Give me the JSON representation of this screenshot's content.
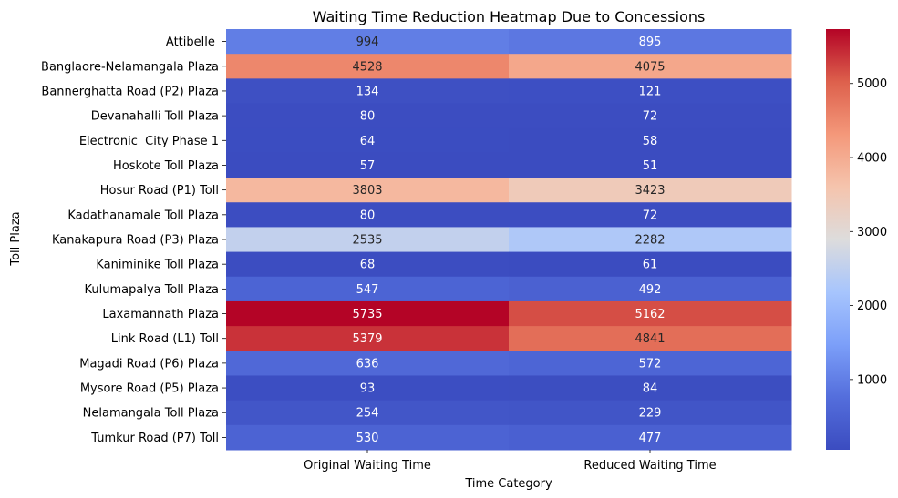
{
  "chart_data": {
    "type": "heatmap",
    "title": "Waiting Time Reduction Heatmap Due to Concessions",
    "xlabel": "Time Category",
    "ylabel": "Toll Plaza",
    "columns": [
      "Original Waiting Time",
      "Reduced Waiting Time"
    ],
    "rows": [
      "Attibelle ",
      "Banglaore-Nelamangala Plaza",
      "Bannerghatta Road (P2) Plaza",
      "Devanahalli Toll Plaza",
      "Electronic  City Phase 1",
      "Hoskote Toll Plaza",
      "Hosur Road (P1) Toll",
      "Kadathanamale Toll Plaza",
      "Kanakapura Road (P3) Plaza",
      "Kaniminike Toll Plaza",
      "Kulumapalya Toll Plaza",
      "Laxamannath Plaza",
      "Link Road (L1) Toll",
      "Magadi Road (P6) Plaza",
      "Mysore Road (P5) Plaza",
      "Nelamangala Toll Plaza",
      "Tumkur Road (P7) Toll"
    ],
    "values": [
      [
        994,
        895
      ],
      [
        4528,
        4075
      ],
      [
        134,
        121
      ],
      [
        80,
        72
      ],
      [
        64,
        58
      ],
      [
        57,
        51
      ],
      [
        3803,
        3423
      ],
      [
        80,
        72
      ],
      [
        2535,
        2282
      ],
      [
        68,
        61
      ],
      [
        547,
        492
      ],
      [
        5735,
        5162
      ],
      [
        5379,
        4841
      ],
      [
        636,
        572
      ],
      [
        93,
        84
      ],
      [
        254,
        229
      ],
      [
        530,
        477
      ]
    ],
    "colormap": "coolwarm",
    "vmin": 51,
    "vmax": 5735,
    "colorbar_ticks": [
      1000,
      2000,
      3000,
      4000,
      5000
    ]
  }
}
